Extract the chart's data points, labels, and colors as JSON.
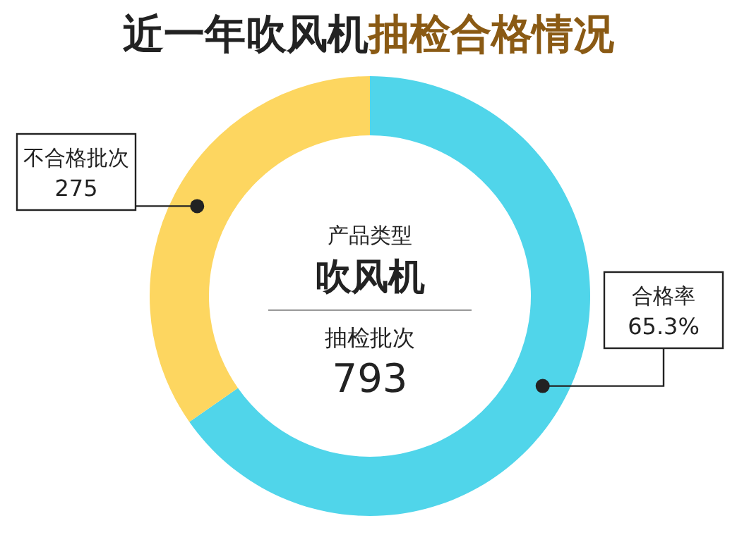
{
  "chart_data": {
    "type": "donut",
    "title": "近一年吹风机抽检合格情况",
    "categories": [
      "合格率",
      "不合格批次"
    ],
    "values": [
      65.3,
      34.7
    ],
    "value_labels": [
      "65.3%",
      null
    ],
    "colors": [
      "#50d5ea",
      "#fdd660"
    ],
    "annotations": [
      "产品类型",
      "吹风机",
      "抽检批次",
      "793",
      {
        "text": "275",
        "x": "不合格批次"
      }
    ]
  }
}
